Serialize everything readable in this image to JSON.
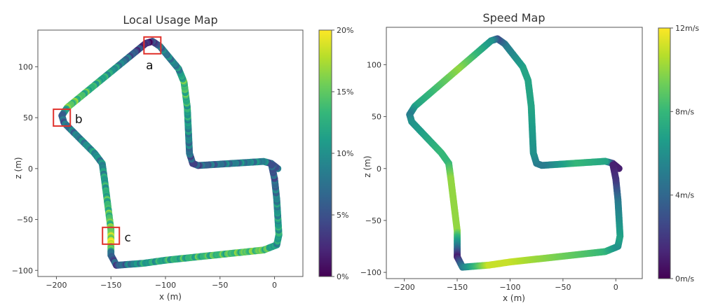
{
  "chart_data": [
    {
      "type": "scatter",
      "title": "Local Usage Map",
      "xlabel": "x (m)",
      "ylabel": "z (m)",
      "xlim": [
        -217,
        26
      ],
      "ylim": [
        -106,
        136
      ],
      "xticks": [
        -200,
        -150,
        -100,
        -50,
        0
      ],
      "yticks": [
        -100,
        -50,
        0,
        50,
        100
      ],
      "xtick_labels": [
        "−200",
        "−150",
        "−100",
        "−50",
        "0"
      ],
      "ytick_labels": [
        "−100",
        "−50",
        "0",
        "50",
        "100"
      ],
      "colorbar": {
        "min": 0,
        "max": 20,
        "ticks": [
          0,
          5,
          10,
          15,
          20
        ],
        "tick_labels": [
          "0%",
          "5%",
          "10%",
          "15%",
          "20%"
        ],
        "colormap": "viridis"
      },
      "annotations": [
        {
          "label": "a",
          "x": -112,
          "z": 121
        },
        {
          "label": "b",
          "x": -195,
          "z": 50
        },
        {
          "label": "c",
          "x": -150,
          "z": -66
        }
      ],
      "annotation_color": "#e0312b",
      "path": [
        [
          3,
          0
        ],
        [
          -3,
          5
        ],
        [
          -10,
          7
        ],
        [
          -40,
          5
        ],
        [
          -70,
          3
        ],
        [
          -75,
          5
        ],
        [
          -78,
          15
        ],
        [
          -80,
          60
        ],
        [
          -83,
          85
        ],
        [
          -88,
          98
        ],
        [
          -105,
          120
        ],
        [
          -112,
          125
        ],
        [
          -118,
          123
        ],
        [
          -150,
          95
        ],
        [
          -190,
          60
        ],
        [
          -195,
          52
        ],
        [
          -193,
          45
        ],
        [
          -165,
          15
        ],
        [
          -158,
          5
        ],
        [
          -156,
          -10
        ],
        [
          -150,
          -60
        ],
        [
          -150,
          -75
        ],
        [
          -150,
          -85
        ],
        [
          -145,
          -95
        ],
        [
          -120,
          -93
        ],
        [
          -100,
          -90
        ],
        [
          -10,
          -80
        ],
        [
          2,
          -75
        ],
        [
          4,
          -65
        ],
        [
          2,
          -30
        ],
        [
          0,
          -10
        ],
        [
          -3,
          5
        ]
      ],
      "values": [
        6,
        5,
        9,
        8,
        6,
        4,
        7,
        12,
        14,
        9,
        8,
        3,
        2,
        11,
        15,
        6,
        7,
        10,
        9,
        11,
        15,
        19,
        6,
        5,
        11,
        12,
        15,
        10,
        12,
        9,
        6,
        5
      ]
    },
    {
      "type": "scatter",
      "title": "Speed Map",
      "xlabel": "x (m)",
      "ylabel": "z (m)",
      "xlim": [
        -217,
        25
      ],
      "ylim": [
        -106,
        136
      ],
      "xticks": [
        -200,
        -150,
        -100,
        -50,
        0
      ],
      "yticks": [
        -100,
        -50,
        0,
        50,
        100
      ],
      "xtick_labels": [
        "−200",
        "−150",
        "−100",
        "−50",
        "0"
      ],
      "ytick_labels": [
        "−100",
        "−50",
        "0",
        "50",
        "100"
      ],
      "colorbar": {
        "min": 0,
        "max": 12,
        "ticks": [
          0,
          4,
          8,
          12
        ],
        "tick_labels": [
          "0m/s",
          "4m/s",
          "8m/s",
          "12m/s"
        ],
        "colormap": "viridis"
      },
      "path": [
        [
          3,
          0
        ],
        [
          -3,
          5
        ],
        [
          -10,
          7
        ],
        [
          -40,
          5
        ],
        [
          -70,
          3
        ],
        [
          -75,
          5
        ],
        [
          -78,
          15
        ],
        [
          -80,
          60
        ],
        [
          -83,
          85
        ],
        [
          -88,
          98
        ],
        [
          -105,
          120
        ],
        [
          -112,
          125
        ],
        [
          -118,
          123
        ],
        [
          -150,
          95
        ],
        [
          -190,
          60
        ],
        [
          -195,
          52
        ],
        [
          -193,
          45
        ],
        [
          -165,
          15
        ],
        [
          -158,
          5
        ],
        [
          -156,
          -10
        ],
        [
          -150,
          -60
        ],
        [
          -150,
          -75
        ],
        [
          -150,
          -85
        ],
        [
          -145,
          -95
        ],
        [
          -120,
          -93
        ],
        [
          -100,
          -90
        ],
        [
          -10,
          -80
        ],
        [
          2,
          -75
        ],
        [
          4,
          -65
        ],
        [
          2,
          -30
        ],
        [
          0,
          -10
        ],
        [
          -3,
          5
        ]
      ],
      "values": [
        1,
        1,
        7,
        8,
        5,
        5,
        6,
        7,
        7,
        7,
        5,
        3,
        6,
        10,
        7,
        5,
        6,
        8,
        8,
        10,
        10,
        5,
        1,
        5,
        11,
        11,
        8,
        6,
        7,
        5,
        2,
        1
      ]
    }
  ]
}
